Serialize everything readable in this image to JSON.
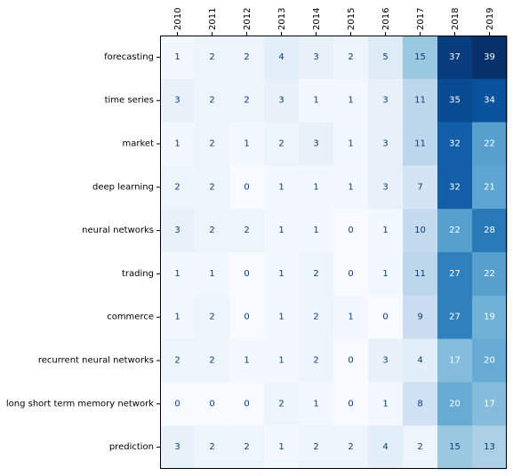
{
  "chart_data": {
    "type": "heatmap",
    "title": "",
    "xlabel": "",
    "ylabel": "",
    "x": [
      "2010",
      "2011",
      "2012",
      "2013",
      "2014",
      "2015",
      "2016",
      "2017",
      "2018",
      "2019"
    ],
    "y": [
      "forecasting",
      "time series",
      "market",
      "deep learning",
      "neural networks",
      "trading",
      "commerce",
      "recurrent neural networks",
      "long short term memory network",
      "prediction"
    ],
    "values": [
      [
        1,
        2,
        2,
        4,
        3,
        2,
        5,
        15,
        37,
        39
      ],
      [
        3,
        2,
        2,
        3,
        1,
        1,
        3,
        11,
        35,
        34
      ],
      [
        1,
        2,
        1,
        2,
        3,
        1,
        3,
        11,
        32,
        22
      ],
      [
        2,
        2,
        0,
        1,
        1,
        1,
        3,
        7,
        32,
        21
      ],
      [
        3,
        2,
        2,
        1,
        1,
        0,
        1,
        10,
        22,
        28
      ],
      [
        1,
        1,
        0,
        1,
        2,
        0,
        1,
        11,
        27,
        22
      ],
      [
        1,
        2,
        0,
        1,
        2,
        1,
        0,
        9,
        27,
        19
      ],
      [
        2,
        2,
        1,
        1,
        2,
        0,
        3,
        4,
        17,
        20
      ],
      [
        0,
        0,
        0,
        2,
        1,
        0,
        1,
        8,
        20,
        17
      ],
      [
        3,
        2,
        2,
        1,
        2,
        2,
        4,
        2,
        15,
        13
      ]
    ],
    "colormap": "Blues",
    "value_range": [
      0,
      39
    ],
    "x_tick_position": "top",
    "x_tick_rotation": "vertical",
    "grid": false,
    "legend": "none"
  }
}
